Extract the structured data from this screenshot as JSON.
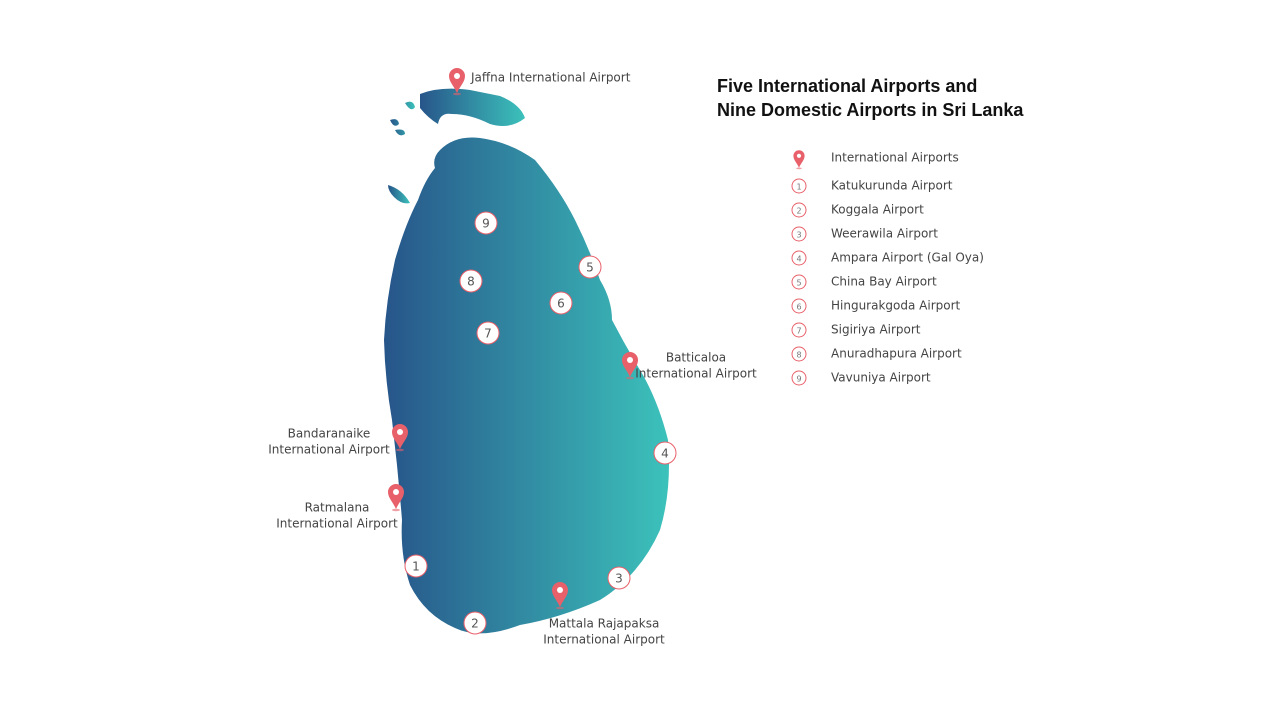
{
  "title": [
    "Five International Airports and",
    "Nine Domestic Airports in Sri Lanka"
  ],
  "legend": {
    "international": "International Airports",
    "domestic": [
      {
        "number": "1",
        "name": "Katukurunda Airport"
      },
      {
        "number": "2",
        "name": "Koggala Airport"
      },
      {
        "number": "3",
        "name": "Weerawila Airport"
      },
      {
        "number": "4",
        "name": "Ampara Airport (Gal Oya)"
      },
      {
        "number": "5",
        "name": "China Bay Airport"
      },
      {
        "number": "6",
        "name": "Hingurakgoda Airport"
      },
      {
        "number": "7",
        "name": "Sigiriya Airport"
      },
      {
        "number": "8",
        "name": "Anuradhapura Airport"
      },
      {
        "number": "9",
        "name": "Vavuniya Airport"
      }
    ]
  },
  "map": {
    "international_airports": [
      {
        "lines": [
          "Jaffna International Airport"
        ]
      },
      {
        "lines": [
          "Batticaloa",
          "International Airport"
        ]
      },
      {
        "lines": [
          "Bandaranaike",
          "International Airport"
        ]
      },
      {
        "lines": [
          "Ratmalana",
          "International Airport"
        ]
      },
      {
        "lines": [
          "Mattala Rajapaksa",
          "International Airport"
        ]
      }
    ]
  }
}
